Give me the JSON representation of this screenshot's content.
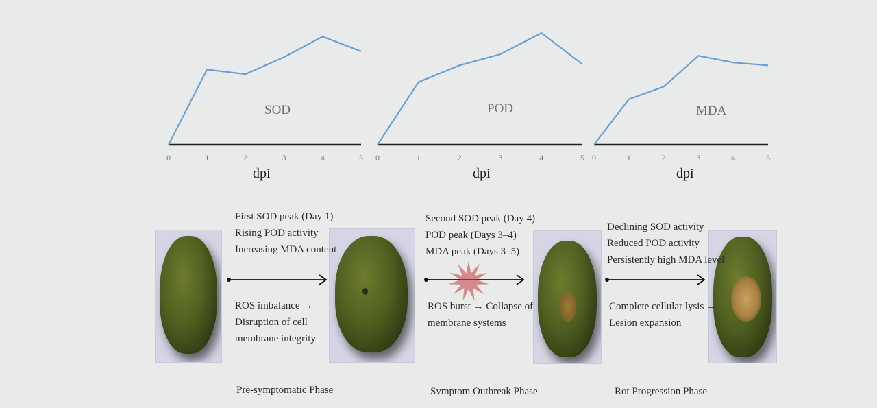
{
  "charts": [
    {
      "label": "SOD",
      "x_ticks": [
        "0",
        "1",
        "2",
        "3",
        "4",
        "5"
      ],
      "xlabel": "dpi",
      "trend": [
        0,
        0.66,
        0.62,
        0.77,
        0.95,
        0.82
      ]
    },
    {
      "label": "POD",
      "x_ticks": [
        "0",
        "1",
        "2",
        "3",
        "4",
        "5"
      ],
      "xlabel": "dpi",
      "trend": [
        0,
        0.56,
        0.71,
        0.81,
        1.0,
        0.72
      ]
    },
    {
      "label": "MDA",
      "x_ticks": [
        "0",
        "1",
        "2",
        "3",
        "4",
        "5"
      ],
      "xlabel": "dpi",
      "trend": [
        0,
        0.47,
        0.6,
        0.92,
        0.85,
        0.82
      ]
    }
  ],
  "stages": [
    {
      "top_notes": [
        "First SOD peak (Day 1)",
        "Rising POD activity",
        "Increasing MDA content"
      ],
      "bottom_notes": [
        "ROS imbalance →",
        "Disruption of cell",
        "membrane integrity"
      ],
      "phase": "Pre-symptomatic Phase"
    },
    {
      "top_notes": [
        "Second SOD peak (Day 4)",
        "POD peak (Days 3–4)",
        "MDA peak (Days 3–5)"
      ],
      "bottom_notes": [
        "ROS burst → Collapse of",
        "membrane systems"
      ],
      "phase": "Symptom Outbreak Phase"
    },
    {
      "top_notes": [
        "Declining SOD activity",
        "Reduced POD activity",
        "Persistently high MDA level"
      ],
      "bottom_notes": [
        "Complete cellular lysis →",
        "Lesion expansion"
      ],
      "phase": "Rot Progression Phase"
    }
  ],
  "colors": {
    "line": "#6b9fd4",
    "axis": "#1f1f1f",
    "burst": "#c4383f",
    "photo_bg": "#d6d5e6"
  }
}
